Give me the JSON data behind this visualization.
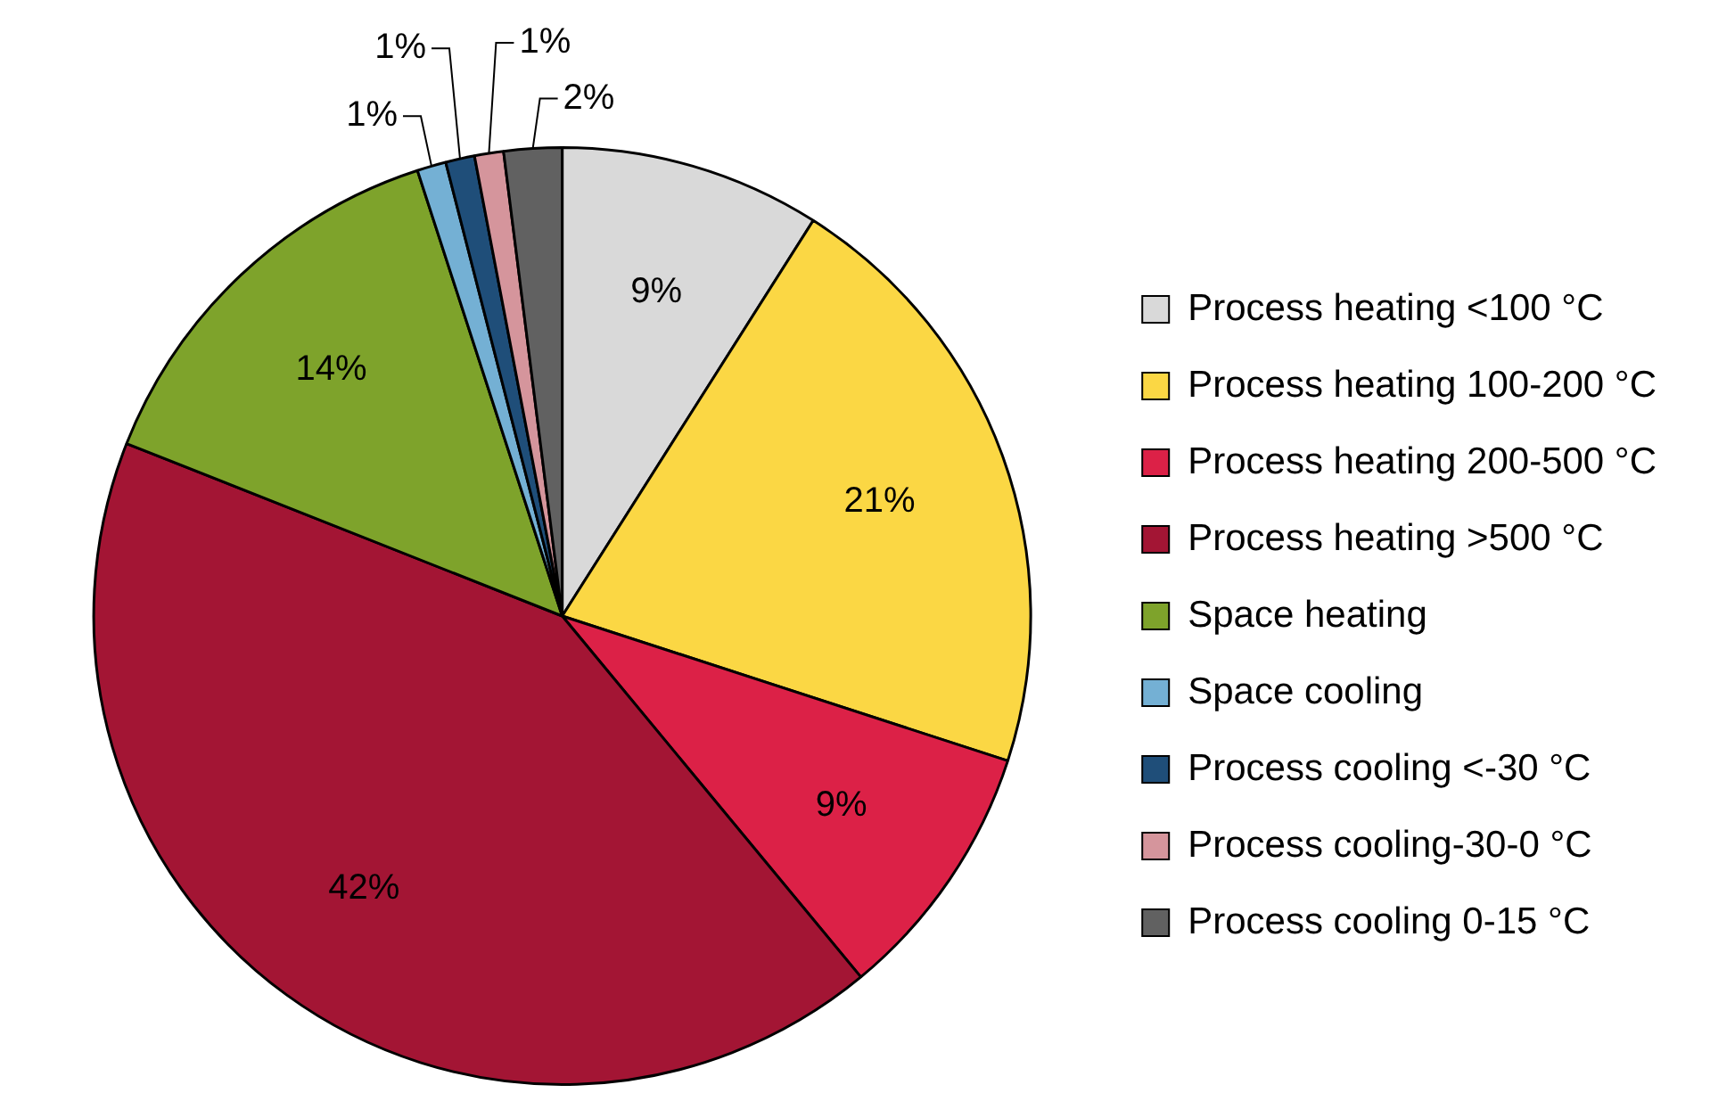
{
  "chart_data": {
    "type": "pie",
    "categories": [
      "Process heating <100 °C",
      "Process heating 100-200 °C",
      "Process heating 200-500 °C",
      "Process heating >500 °C",
      "Space heating",
      "Space cooling",
      "Process cooling <-30 °C",
      "Process cooling-30-0 °C",
      "Process cooling 0-15 °C"
    ],
    "values": [
      9,
      21,
      9,
      42,
      14,
      1,
      1,
      1,
      2
    ],
    "colors": [
      "#d9d9d9",
      "#fbd744",
      "#dc2147",
      "#a31534",
      "#7ea32b",
      "#74b0d4",
      "#1f4e79",
      "#d5959c",
      "#616161"
    ],
    "value_labels": [
      "9%",
      "21%",
      "9%",
      "42%",
      "14%",
      "1%",
      "1%",
      "1%",
      "2%"
    ],
    "legend": "right"
  }
}
